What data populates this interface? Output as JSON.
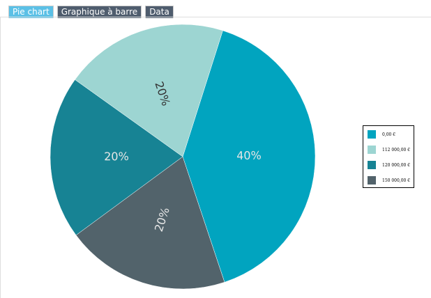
{
  "tabs": [
    {
      "label": "Pie chart",
      "active": true
    },
    {
      "label": "Graphique à barre",
      "active": false
    },
    {
      "label": "Data",
      "active": false
    }
  ],
  "chart_data": {
    "type": "pie",
    "start_angle_deg": 17.6,
    "direction": "clockwise",
    "slices": [
      {
        "label": "0,00 €",
        "percent": 40,
        "color": "#01a4bf",
        "text_color": "#e6e6e6"
      },
      {
        "label": "150 000,00 €",
        "percent": 20,
        "color": "#52636b",
        "text_color": "#e6e6e6"
      },
      {
        "label": "120 000,00 €",
        "percent": 20,
        "color": "#178394",
        "text_color": "#e6e6e6"
      },
      {
        "label": "112 000,00 €",
        "percent": 20,
        "color": "#9dd5d2",
        "text_color": "#333333"
      }
    ],
    "data_labels": [
      "40%",
      "20%",
      "20%",
      "20%"
    ],
    "legend": {
      "placement": "right",
      "order": [
        "0,00 €",
        "112 000,00 €",
        "120 000,00 €",
        "150 000,00 €"
      ]
    }
  }
}
